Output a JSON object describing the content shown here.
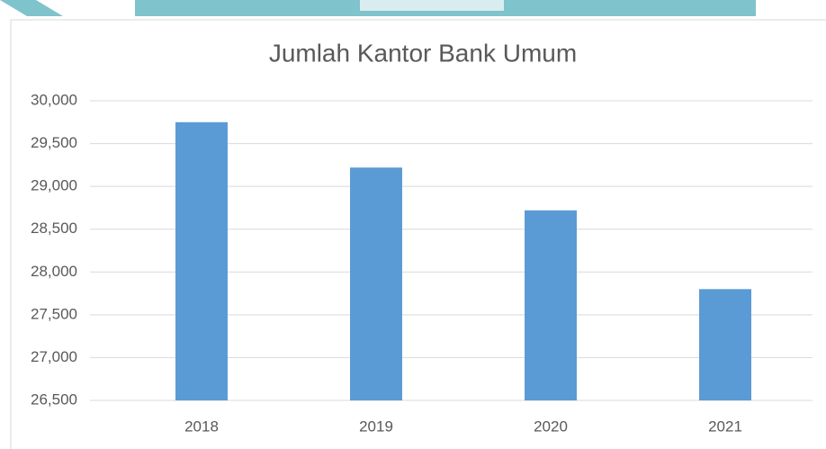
{
  "chart_data": {
    "type": "bar",
    "title": "Jumlah Kantor  Bank Umum",
    "categories": [
      "2018",
      "2019",
      "2020",
      "2021"
    ],
    "values": [
      29750,
      29220,
      28720,
      27800
    ],
    "color": "#5b9bd5",
    "ylim": [
      26500,
      30000
    ],
    "yticks": [
      {
        "value": 26500,
        "label": "26,500"
      },
      {
        "value": 27000,
        "label": "27,000"
      },
      {
        "value": 27500,
        "label": "27,500"
      },
      {
        "value": 28000,
        "label": "28,000"
      },
      {
        "value": 28500,
        "label": "28,500"
      },
      {
        "value": 29000,
        "label": "29,000"
      },
      {
        "value": 29500,
        "label": "29,500"
      },
      {
        "value": 30000,
        "label": "30,000"
      }
    ],
    "grid": true
  }
}
